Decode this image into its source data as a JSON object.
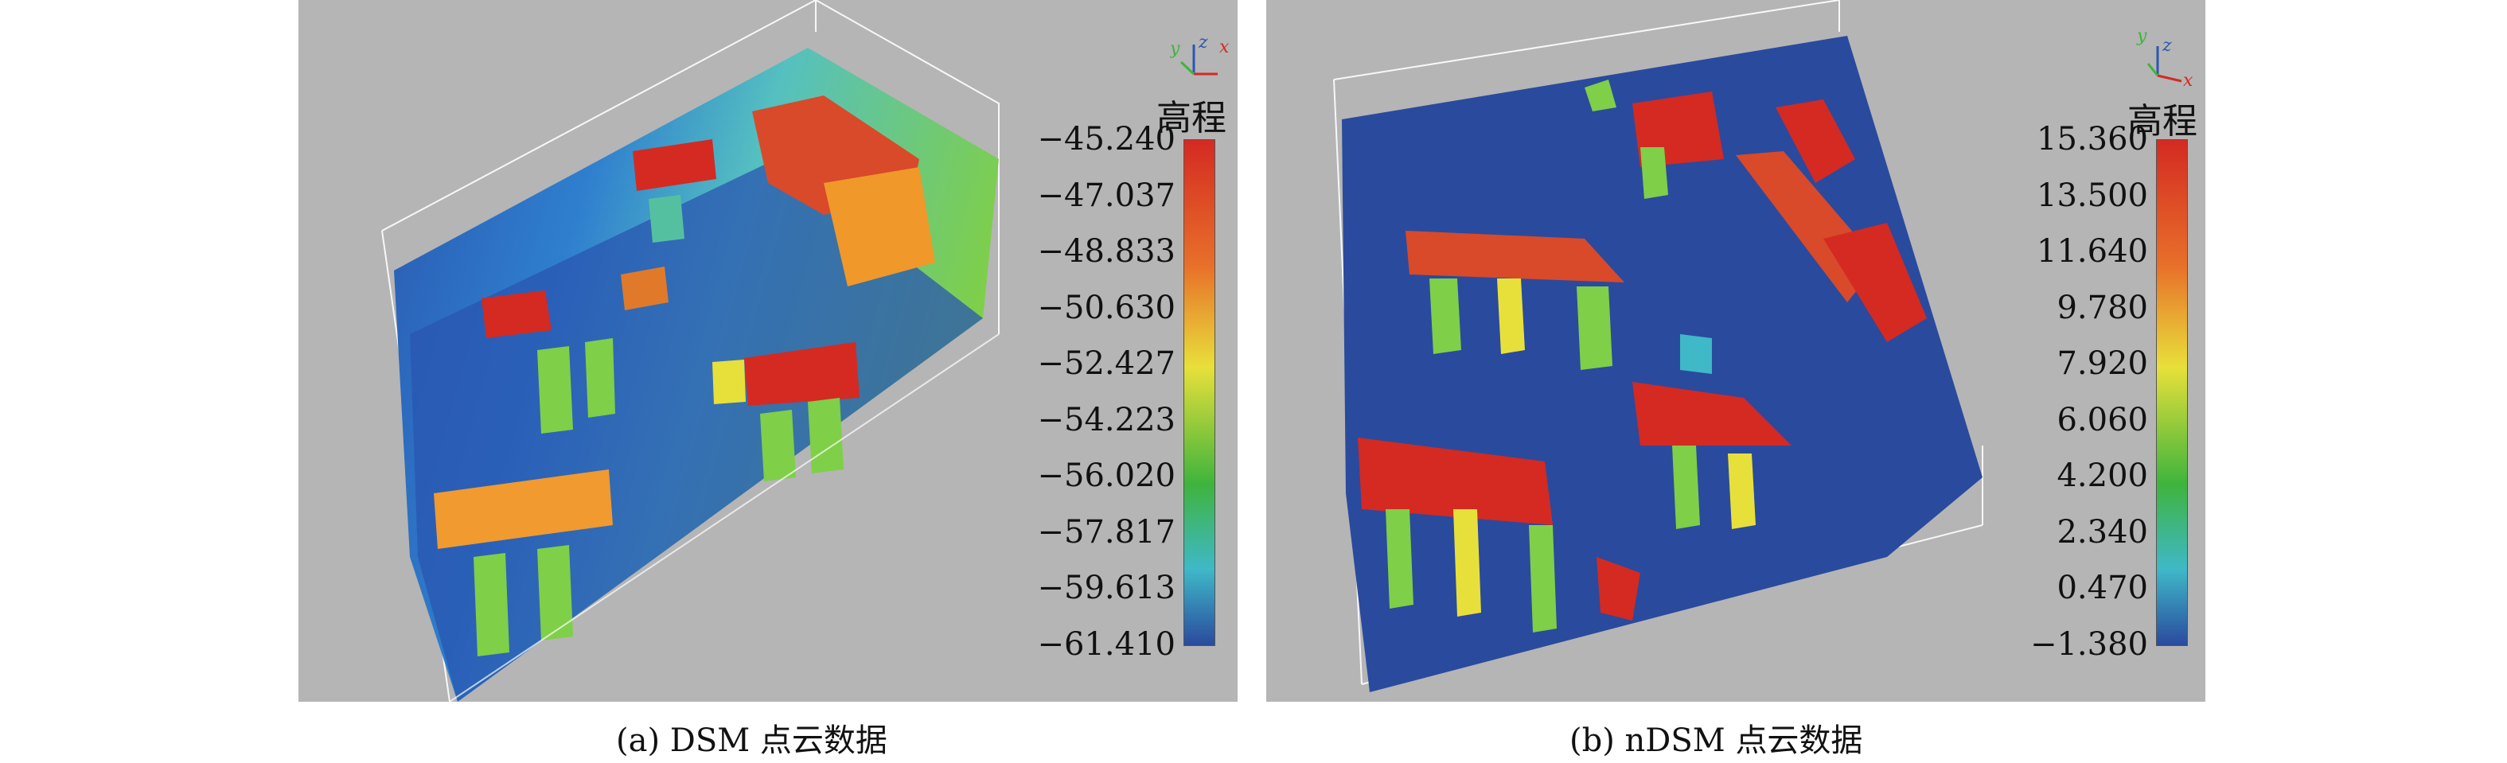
{
  "panels": [
    {
      "caption": "(a) DSM 点云数据",
      "colorbar": {
        "title": "高程",
        "ticks": [
          "−45.240",
          "−47.037",
          "−48.833",
          "−50.630",
          "−52.427",
          "−54.223",
          "−56.020",
          "−57.817",
          "−59.613",
          "−61.410"
        ]
      },
      "axes": {
        "x": "x",
        "y": "y",
        "z": "z"
      }
    },
    {
      "caption": "(b) nDSM 点云数据",
      "colorbar": {
        "title": "高程",
        "ticks": [
          "15.360",
          "13.500",
          "11.640",
          "9.780",
          "7.920",
          "6.060",
          "4.200",
          "2.340",
          "0.470",
          "−1.380"
        ]
      },
      "axes": {
        "x": "x",
        "y": "y",
        "z": "z"
      }
    }
  ],
  "colors": {
    "background": "#b5b5b5",
    "low": "#2a4a9e",
    "mid": "#3fb43c",
    "high": "#d42a22",
    "yellow": "#e8e03a",
    "cyan": "#3fb8c8"
  }
}
